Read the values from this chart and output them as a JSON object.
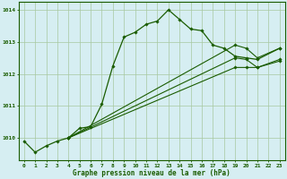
{
  "title": "Graphe pression niveau de la mer (hPa)",
  "bg_color": "#d6eef2",
  "grid_color": "#a8c8a0",
  "line_color": "#1a5c00",
  "ylim": [
    1009.3,
    1014.25
  ],
  "yticks": [
    1010,
    1011,
    1012,
    1013,
    1014
  ],
  "x_ticks": [
    0,
    1,
    2,
    3,
    4,
    5,
    6,
    7,
    8,
    9,
    10,
    11,
    12,
    13,
    14,
    15,
    16,
    17,
    18,
    19,
    20,
    21,
    22,
    23
  ],
  "line1_x": [
    0,
    1,
    2,
    3,
    4,
    5,
    6,
    7,
    8,
    9,
    10,
    11,
    12,
    13,
    14,
    15,
    16,
    17,
    18,
    19,
    20,
    21,
    23
  ],
  "line1_y": [
    1009.9,
    1009.55,
    1009.75,
    1009.9,
    1010.0,
    1010.3,
    1010.35,
    1011.05,
    1012.25,
    1013.15,
    1013.3,
    1013.55,
    1013.65,
    1014.0,
    1013.7,
    1013.4,
    1013.35,
    1012.9,
    1012.8,
    1012.55,
    1012.5,
    1012.45,
    1012.8
  ],
  "line2_x": [
    4,
    19,
    20,
    21,
    23
  ],
  "line2_y": [
    1010.0,
    1012.9,
    1012.8,
    1012.5,
    1012.8
  ],
  "line3_x": [
    4,
    19,
    20,
    21,
    23
  ],
  "line3_y": [
    1010.0,
    1012.5,
    1012.45,
    1012.2,
    1012.4
  ],
  "line4_x": [
    4,
    19,
    20,
    21,
    23
  ],
  "line4_y": [
    1010.0,
    1012.2,
    1012.2,
    1012.2,
    1012.45
  ]
}
